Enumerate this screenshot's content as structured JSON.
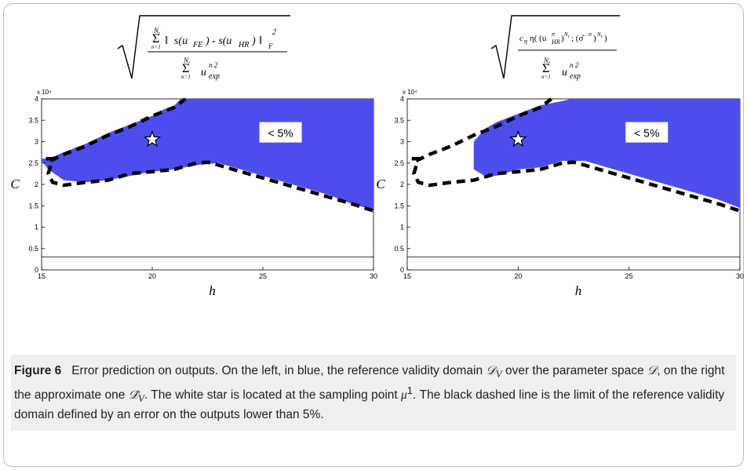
{
  "figure": {
    "label": "Figure 6",
    "caption": "Error prediction on outputs. On the left, in blue, the reference validity domain 𝒟_V over the parameter space 𝒟, on the right the approximate one 𝒟̃_V. The white star is located at the sampling point μ¹. The black dashed line is the limit of the reference validity domain defined by an error on the outputs lower than 5%.",
    "colors": {
      "domain_fill": "#4d4dee",
      "boundary": "#000000",
      "star_fill": "#ffffff"
    }
  },
  "panels": [
    {
      "formula_numerator": "Σ‖ s(u_FE) - s(u_HR) ‖²_F",
      "formula_denominator": "Σ u_exp^n 2",
      "sum_limits": [
        "N_t",
        "n=1"
      ],
      "annotation": "< 5%",
      "xlabel": "h",
      "ylabel": "C",
      "multiplier": "x 10⁴"
    },
    {
      "formula_numerator": "c_η η( (u_HR^n)^Nt ; (σ̂^n)^Nt )",
      "formula_denominator": "Σ u_exp^n 2",
      "sum_limits": [
        "N_t",
        "n=1"
      ],
      "annotation": "< 5%",
      "xlabel": "h",
      "ylabel": "C",
      "multiplier": "x 10⁴"
    }
  ],
  "chart_data": [
    {
      "type": "area",
      "xlim": [
        15,
        30
      ],
      "ylim": [
        0,
        4
      ],
      "y_scale_note": "x 10^4",
      "xticks": [
        15,
        20,
        25,
        30
      ],
      "yticks": [
        0,
        0.5,
        1,
        1.5,
        2,
        2.5,
        3,
        3.5,
        4
      ],
      "region_upper": {
        "x": [
          15.0,
          15.3,
          16.0,
          17.0,
          18.0,
          19.0,
          20.0,
          20.5,
          21.0,
          21.3
        ],
        "y": [
          2.6,
          2.6,
          2.75,
          2.95,
          3.2,
          3.4,
          3.6,
          3.75,
          3.85,
          4.0
        ]
      },
      "region_lower": {
        "x": [
          15.0,
          15.3,
          16.0,
          17.0,
          18.0,
          19.0,
          20.0,
          21.0,
          22.0,
          23.0,
          24.0,
          25.0,
          26.0,
          27.0,
          28.0,
          29.0,
          30.0
        ],
        "y": [
          2.55,
          2.35,
          2.1,
          2.05,
          2.1,
          2.2,
          2.3,
          2.35,
          2.45,
          2.5,
          2.35,
          2.2,
          2.05,
          1.9,
          1.75,
          1.55,
          1.4
        ]
      },
      "boundary": {
        "x": [
          15.2,
          15.5,
          15.3,
          15.5,
          16.0,
          17.0,
          18.0,
          19.0,
          20.0,
          21.0,
          22.0,
          22.5,
          23.0,
          24.0,
          25.0,
          26.0,
          27.0,
          28.0,
          29.0,
          30.0
        ],
        "y": [
          2.6,
          2.6,
          2.25,
          2.05,
          1.98,
          2.05,
          2.1,
          2.25,
          2.3,
          2.35,
          2.5,
          2.52,
          2.45,
          2.3,
          2.15,
          2.0,
          1.85,
          1.7,
          1.55,
          1.38
        ]
      },
      "boundary_upper": {
        "x": [
          15.4,
          16.0,
          17.0,
          18.0,
          19.0,
          20.0,
          21.0,
          21.5
        ],
        "y": [
          2.55,
          2.7,
          2.9,
          3.15,
          3.35,
          3.6,
          3.8,
          4.0
        ]
      },
      "star": {
        "x": 20.0,
        "y": 3.05
      },
      "annotation_pos": {
        "x": 25.8,
        "y": 3.2
      }
    },
    {
      "type": "area",
      "xlim": [
        15,
        30
      ],
      "ylim": [
        0,
        4
      ],
      "y_scale_note": "x 10^4",
      "xticks": [
        15,
        20,
        25,
        30
      ],
      "yticks": [
        0,
        0.5,
        1,
        1.5,
        2,
        2.5,
        3,
        3.5,
        4
      ],
      "region_upper": {
        "x": [
          18.0,
          18.5,
          19.0,
          19.5,
          20.0,
          20.5,
          21.0,
          21.5,
          22.0,
          22.4
        ],
        "y": [
          3.0,
          3.3,
          3.45,
          3.55,
          3.65,
          3.75,
          3.85,
          3.9,
          3.95,
          4.0
        ]
      },
      "region_lower": {
        "x": [
          18.0,
          18.5,
          19.0,
          20.0,
          21.0,
          22.0,
          23.0,
          24.0,
          25.0,
          26.0,
          27.0,
          28.0,
          29.0,
          30.0
        ],
        "y": [
          2.35,
          2.2,
          2.2,
          2.35,
          2.4,
          2.55,
          2.55,
          2.4,
          2.25,
          2.1,
          1.95,
          1.8,
          1.65,
          1.45
        ]
      },
      "boundary": {
        "x": [
          15.2,
          15.5,
          15.3,
          15.5,
          16.0,
          17.0,
          18.0,
          19.0,
          20.0,
          21.0,
          22.0,
          22.5,
          23.0,
          24.0,
          25.0,
          26.0,
          27.0,
          28.0,
          29.0,
          30.0
        ],
        "y": [
          2.6,
          2.6,
          2.25,
          2.05,
          1.98,
          2.05,
          2.1,
          2.25,
          2.3,
          2.35,
          2.5,
          2.52,
          2.45,
          2.3,
          2.15,
          2.0,
          1.85,
          1.7,
          1.55,
          1.38
        ]
      },
      "boundary_upper": {
        "x": [
          15.4,
          16.0,
          17.0,
          18.0,
          19.0,
          20.0,
          21.0,
          21.5
        ],
        "y": [
          2.55,
          2.7,
          2.9,
          3.15,
          3.35,
          3.6,
          3.8,
          4.0
        ]
      },
      "star": {
        "x": 20.0,
        "y": 3.05
      },
      "annotation_pos": {
        "x": 25.8,
        "y": 3.2
      }
    }
  ]
}
